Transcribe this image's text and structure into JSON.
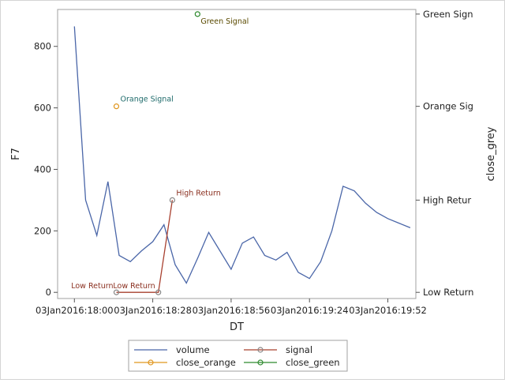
{
  "chart_data": {
    "type": "line",
    "xlabel": "DT",
    "ylabel": "F7",
    "y2label": "close_grey",
    "x_ticks": [
      "03Jan2016:18:00",
      "03Jan2016:18:28",
      "03Jan2016:18:56",
      "03Jan2016:19:24",
      "03Jan2016:19:52"
    ],
    "xlim": [
      "03Jan2016:17:54",
      "03Jan2016:20:02"
    ],
    "ylim": [
      -20,
      920
    ],
    "y_ticks": [
      0,
      200,
      400,
      600,
      800
    ],
    "y2_ticks": [
      {
        "label": "Low Return",
        "level": 0
      },
      {
        "label": "High Retur",
        "level": 300
      },
      {
        "label": "Orange Sig",
        "level": 605
      },
      {
        "label": "Green Sign",
        "level": 905
      }
    ],
    "series": [
      {
        "name": "volume",
        "color": "#4a66a8",
        "x": [
          "18:00",
          "18:04",
          "18:08",
          "18:12",
          "18:16",
          "18:20",
          "18:24",
          "18:28",
          "18:32",
          "18:36",
          "18:40",
          "18:44",
          "18:48",
          "18:52",
          "18:56",
          "19:00",
          "19:04",
          "19:08",
          "19:12",
          "19:16",
          "19:20",
          "19:24",
          "19:28",
          "19:32",
          "19:36",
          "19:40",
          "19:44",
          "19:48",
          "19:52",
          "19:56",
          "20:00"
        ],
        "y": [
          865,
          300,
          185,
          360,
          120,
          100,
          135,
          165,
          220,
          90,
          30,
          110,
          195,
          135,
          75,
          160,
          180,
          120,
          105,
          130,
          65,
          45,
          100,
          200,
          345,
          330,
          290,
          260,
          240,
          225,
          210
        ]
      },
      {
        "name": "signal",
        "color": "#a8402f",
        "marker_color": "#888888",
        "x": [
          "18:15",
          "18:30",
          "18:35"
        ],
        "y": [
          0,
          0,
          300
        ]
      },
      {
        "name": "close_orange",
        "color": "#e0961f",
        "x": [
          "18:15"
        ],
        "y": [
          605
        ]
      },
      {
        "name": "close_green",
        "color": "#2f8a2f",
        "x": [
          "18:44"
        ],
        "y": [
          905
        ]
      }
    ],
    "annotations": [
      {
        "text": "Green Signal",
        "x": "18:44",
        "y": 905,
        "color": "#5a4a00",
        "position": "below-right"
      },
      {
        "text": "Orange Signal",
        "x": "18:15",
        "y": 605,
        "color": "#1f6b6b",
        "position": "above-right"
      },
      {
        "text": "High Return",
        "x": "18:35",
        "y": 300,
        "color": "#8a2f1f",
        "position": "above-right"
      },
      {
        "text": "Low Return",
        "x": "18:15",
        "y": 0,
        "color": "#8a2f1f",
        "position": "left"
      },
      {
        "text": "Low Return",
        "x": "18:30",
        "y": 0,
        "color": "#8a2f1f",
        "position": "left"
      }
    ],
    "legend": {
      "placement": "bottom",
      "items": [
        {
          "label": "volume",
          "color": "#4a66a8",
          "style": "line"
        },
        {
          "label": "signal",
          "color": "#a8402f",
          "style": "line-marker",
          "marker_color": "#888888"
        },
        {
          "label": "close_orange",
          "color": "#e0961f",
          "style": "line-marker",
          "marker_color": "#e0961f"
        },
        {
          "label": "close_green",
          "color": "#2f8a2f",
          "style": "line-marker",
          "marker_color": "#2f8a2f"
        }
      ]
    },
    "grid": false
  }
}
